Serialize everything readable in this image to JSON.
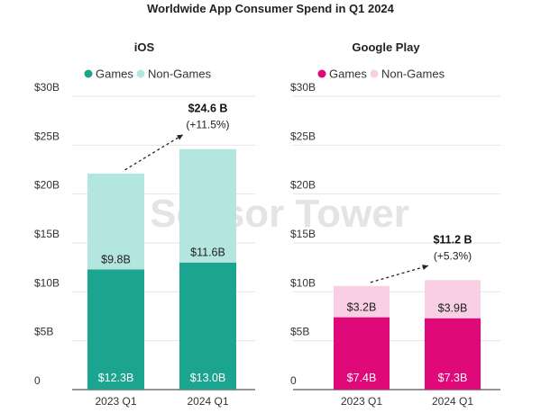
{
  "chart_data": {
    "title": "Worldwide App Consumer Spend in Q1 2024",
    "watermark": "Sensor Tower",
    "panels": [
      {
        "type": "bar",
        "stacked": true,
        "subtitle": "iOS",
        "categories": [
          "2023 Q1",
          "2024 Q1"
        ],
        "series": [
          {
            "name": "Games",
            "values": [
              12.3,
              13.0
            ],
            "labels": [
              "$12.3B",
              "$13.0B"
            ],
            "color": "#1ba591"
          },
          {
            "name": "Non-Games",
            "values": [
              9.8,
              11.6
            ],
            "labels": [
              "$9.8B",
              "$11.6B"
            ],
            "color": "#b4e6e0"
          }
        ],
        "total_annotation": {
          "total": "$24.6 B",
          "change": "(+11.5%)"
        },
        "yticks": [
          "0",
          "$5B",
          "$10B",
          "$15B",
          "$20B",
          "$25B",
          "$30B"
        ],
        "ylim": [
          0,
          30
        ],
        "legend": "top"
      },
      {
        "type": "bar",
        "stacked": true,
        "subtitle": "Google Play",
        "categories": [
          "2023 Q1",
          "2024 Q1"
        ],
        "series": [
          {
            "name": "Games",
            "values": [
              7.4,
              7.3
            ],
            "labels": [
              "$7.4B",
              "$7.3B"
            ],
            "color": "#e0097a"
          },
          {
            "name": "Non-Games",
            "values": [
              3.2,
              3.9
            ],
            "labels": [
              "$3.2B",
              "$3.9B"
            ],
            "color": "#f8cfe3"
          }
        ],
        "total_annotation": {
          "total": "$11.2 B",
          "change": "(+5.3%)"
        },
        "yticks": [
          "0",
          "$5B",
          "$10B",
          "$15B",
          "$20B",
          "$25B",
          "$30B"
        ],
        "ylim": [
          0,
          30
        ],
        "legend": "top"
      }
    ]
  }
}
